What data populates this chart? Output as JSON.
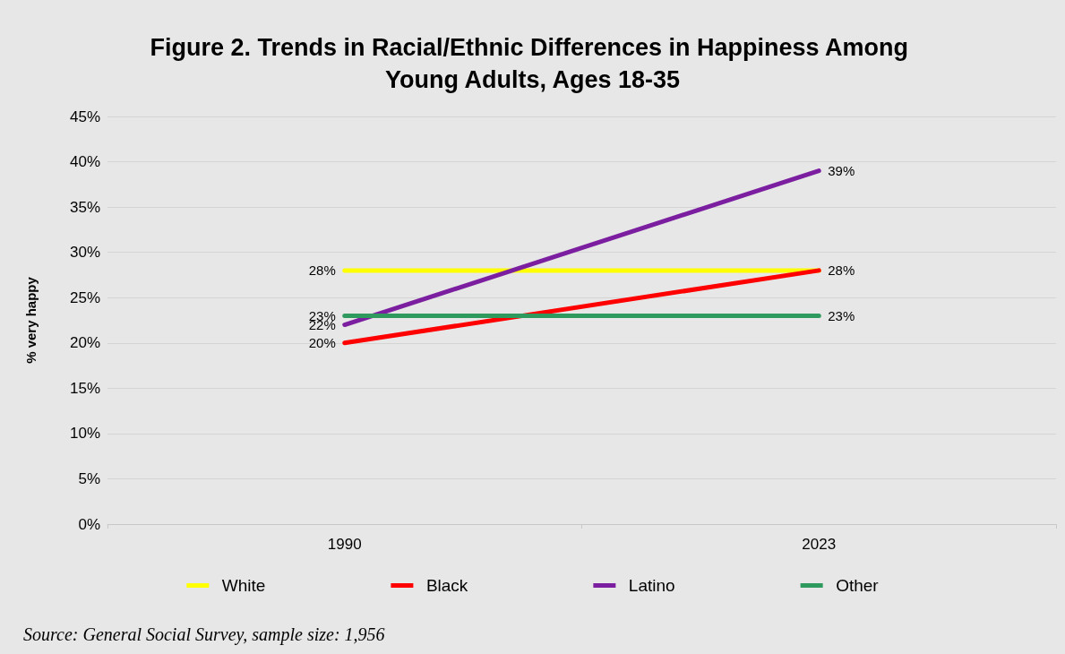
{
  "chart_data": {
    "type": "line",
    "title": "Figure 2. Trends in Racial/Ethnic Differences in Happiness Among Young Adults, Ages 18-35",
    "ylabel": "% very happy",
    "categories": [
      "1990",
      "2023"
    ],
    "series": [
      {
        "name": "White",
        "color": "#ffff00",
        "values": [
          28,
          28
        ],
        "value_labels": [
          "28%",
          null
        ]
      },
      {
        "name": "Black",
        "color": "#ff0000",
        "values": [
          20,
          28
        ],
        "value_labels": [
          "20%",
          "28%"
        ]
      },
      {
        "name": "Latino",
        "color": "#7b1fa0",
        "values": [
          22,
          39
        ],
        "value_labels": [
          "22%",
          "39%"
        ]
      },
      {
        "name": "Other",
        "color": "#2e9a5e",
        "values": [
          23,
          23
        ],
        "value_labels": [
          "23%",
          "23%"
        ]
      }
    ],
    "ylim": [
      0,
      45
    ],
    "yticks": [
      {
        "value": 0,
        "label": "0%"
      },
      {
        "value": 5,
        "label": "5%"
      },
      {
        "value": 10,
        "label": "10%"
      },
      {
        "value": 15,
        "label": "15%"
      },
      {
        "value": 20,
        "label": "20%"
      },
      {
        "value": 25,
        "label": "25%"
      },
      {
        "value": 30,
        "label": "30%"
      },
      {
        "value": 35,
        "label": "35%"
      },
      {
        "value": 40,
        "label": "40%"
      },
      {
        "value": 45,
        "label": "45%"
      }
    ],
    "grid": "y",
    "legend": "bottom",
    "marker": "none",
    "line_style": "solid",
    "annotations": [
      "Source: General Social Survey, sample size: 1,956"
    ]
  }
}
